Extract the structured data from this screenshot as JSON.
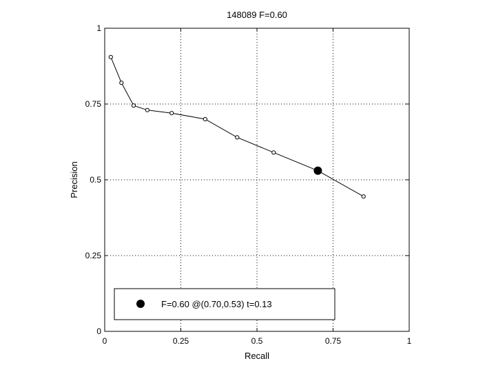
{
  "chart_data": {
    "type": "line",
    "title": "148089 F=0.60",
    "xlabel": "Recall",
    "ylabel": "Precision",
    "xlim": [
      0,
      1
    ],
    "ylim": [
      0,
      1
    ],
    "grid": true,
    "x_ticks": [
      0,
      0.25,
      0.5,
      0.75,
      1
    ],
    "y_ticks": [
      0,
      0.25,
      0.5,
      0.75,
      1
    ],
    "x_tick_labels": [
      "0",
      "0.25",
      "0.5",
      "0.75",
      "1"
    ],
    "y_tick_labels": [
      "0",
      "0.25",
      "0.5",
      "0.75",
      "1"
    ],
    "series": [
      {
        "x": [
          0.02,
          0.055,
          0.095,
          0.14,
          0.22,
          0.33,
          0.435,
          0.555,
          0.7,
          0.85
        ],
        "y": [
          0.905,
          0.82,
          0.745,
          0.73,
          0.72,
          0.7,
          0.64,
          0.59,
          0.53,
          0.445
        ]
      }
    ],
    "highlight_point": {
      "x": 0.7,
      "y": 0.53
    },
    "legend": {
      "placement": "bottom",
      "label": "F=0.60 @(0.70,0.53) t=0.13"
    },
    "colors": {
      "line": "#000000",
      "grid": "#000000",
      "background": "#ffffff"
    }
  }
}
